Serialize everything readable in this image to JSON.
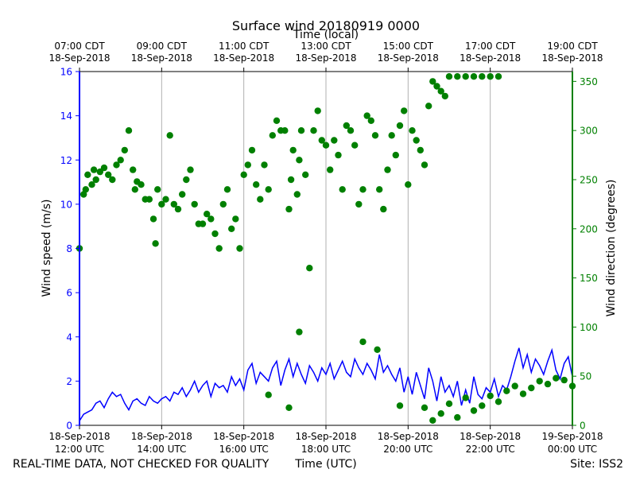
{
  "chart_data": {
    "type": "line",
    "title": "Surface wind 20180919 0000",
    "top_axis_label": "Time (local)",
    "xlabel": "Time (UTC)",
    "ylabel": "Wind speed (m/s)",
    "y2label": "Wind direction (degrees)",
    "footer_left": "REAL-TIME DATA, NOT CHECKED FOR QUALITY",
    "footer_right": "Site: ISS2",
    "xlim_hours_utc": [
      12,
      24
    ],
    "ylim": [
      0,
      16
    ],
    "y2lim": [
      0,
      360
    ],
    "grid": "vertical",
    "colors": {
      "speed": "#0000ff",
      "direction": "#008000",
      "axis": "#000000",
      "grid": "#b0b0b0"
    },
    "bottom_ticks": [
      {
        "hour": 12,
        "date": "18-Sep-2018",
        "time": "12:00 UTC"
      },
      {
        "hour": 14,
        "date": "18-Sep-2018",
        "time": "14:00 UTC"
      },
      {
        "hour": 16,
        "date": "18-Sep-2018",
        "time": "16:00 UTC"
      },
      {
        "hour": 18,
        "date": "18-Sep-2018",
        "time": "18:00 UTC"
      },
      {
        "hour": 20,
        "date": "18-Sep-2018",
        "time": "20:00 UTC"
      },
      {
        "hour": 22,
        "date": "18-Sep-2018",
        "time": "22:00 UTC"
      },
      {
        "hour": 24,
        "date": "19-Sep-2018",
        "time": "00:00 UTC"
      }
    ],
    "top_ticks": [
      {
        "hour": 12,
        "time": "07:00 CDT",
        "date": "18-Sep-2018"
      },
      {
        "hour": 14,
        "time": "09:00 CDT",
        "date": "18-Sep-2018"
      },
      {
        "hour": 16,
        "time": "11:00 CDT",
        "date": "18-Sep-2018"
      },
      {
        "hour": 18,
        "time": "13:00 CDT",
        "date": "18-Sep-2018"
      },
      {
        "hour": 20,
        "time": "15:00 CDT",
        "date": "18-Sep-2018"
      },
      {
        "hour": 22,
        "time": "17:00 CDT",
        "date": "18-Sep-2018"
      },
      {
        "hour": 24,
        "time": "19:00 CDT",
        "date": "18-Sep-2018"
      }
    ],
    "yticks": [
      0,
      2,
      4,
      6,
      8,
      10,
      12,
      14,
      16
    ],
    "y2ticks": [
      0,
      50,
      100,
      150,
      200,
      250,
      300,
      350
    ],
    "series": [
      {
        "name": "Wind speed",
        "axis": "left",
        "style": "line",
        "x": [
          12.0,
          12.1,
          12.2,
          12.3,
          12.4,
          12.5,
          12.6,
          12.7,
          12.8,
          12.9,
          13.0,
          13.1,
          13.2,
          13.3,
          13.4,
          13.5,
          13.6,
          13.7,
          13.8,
          13.9,
          14.0,
          14.1,
          14.2,
          14.3,
          14.4,
          14.5,
          14.6,
          14.7,
          14.8,
          14.9,
          15.0,
          15.1,
          15.2,
          15.3,
          15.4,
          15.5,
          15.6,
          15.7,
          15.8,
          15.9,
          16.0,
          16.1,
          16.2,
          16.3,
          16.4,
          16.5,
          16.6,
          16.7,
          16.8,
          16.9,
          17.0,
          17.1,
          17.2,
          17.3,
          17.4,
          17.5,
          17.6,
          17.7,
          17.8,
          17.9,
          18.0,
          18.1,
          18.2,
          18.3,
          18.4,
          18.5,
          18.6,
          18.7,
          18.8,
          18.9,
          19.0,
          19.1,
          19.2,
          19.3,
          19.4,
          19.5,
          19.6,
          19.7,
          19.8,
          19.9,
          20.0,
          20.1,
          20.2,
          20.3,
          20.4,
          20.5,
          20.6,
          20.7,
          20.8,
          20.9,
          21.0,
          21.1,
          21.2,
          21.3,
          21.4,
          21.5,
          21.6,
          21.7,
          21.8,
          21.9,
          22.0,
          22.1,
          22.2,
          22.3,
          22.4,
          22.5,
          22.6,
          22.7,
          22.8,
          22.9,
          23.0,
          23.1,
          23.2,
          23.3,
          23.4,
          23.5,
          23.6,
          23.7,
          23.8,
          23.9,
          24.0
        ],
        "values": [
          0.2,
          0.5,
          0.6,
          0.7,
          1.0,
          1.1,
          0.8,
          1.2,
          1.5,
          1.3,
          1.4,
          1.0,
          0.7,
          1.1,
          1.2,
          1.0,
          0.9,
          1.3,
          1.1,
          1.0,
          1.2,
          1.3,
          1.1,
          1.5,
          1.4,
          1.7,
          1.3,
          1.6,
          2.0,
          1.5,
          1.8,
          2.0,
          1.3,
          1.9,
          1.7,
          1.8,
          1.5,
          2.2,
          1.8,
          2.1,
          1.6,
          2.5,
          2.8,
          1.9,
          2.4,
          2.2,
          2.0,
          2.6,
          2.9,
          1.8,
          2.5,
          3.0,
          2.2,
          2.8,
          2.3,
          1.9,
          2.7,
          2.4,
          2.0,
          2.6,
          2.3,
          2.8,
          2.1,
          2.5,
          2.9,
          2.4,
          2.2,
          3.0,
          2.6,
          2.3,
          2.8,
          2.5,
          2.1,
          3.2,
          2.4,
          2.7,
          2.3,
          2.0,
          2.6,
          1.5,
          2.2,
          1.4,
          2.4,
          1.8,
          1.2,
          2.6,
          2.0,
          1.1,
          2.2,
          1.5,
          1.8,
          1.3,
          2.0,
          0.9,
          1.6,
          1.0,
          2.2,
          1.4,
          1.2,
          1.7,
          1.5,
          2.1,
          1.3,
          1.8,
          1.6,
          2.2,
          2.9,
          3.5,
          2.6,
          3.2,
          2.4,
          3.0,
          2.7,
          2.3,
          2.9,
          3.4,
          2.5,
          2.1,
          2.8,
          3.1,
          2.2
        ]
      },
      {
        "name": "Wind direction",
        "axis": "right",
        "style": "points",
        "x": [
          12.0,
          12.1,
          12.15,
          12.2,
          12.3,
          12.35,
          12.4,
          12.5,
          12.6,
          12.7,
          12.8,
          12.9,
          13.0,
          13.1,
          13.2,
          13.3,
          13.35,
          13.4,
          13.5,
          13.6,
          13.7,
          13.8,
          13.85,
          13.9,
          14.0,
          14.1,
          14.2,
          14.3,
          14.4,
          14.5,
          14.6,
          14.7,
          14.8,
          14.9,
          15.0,
          15.1,
          15.2,
          15.3,
          15.4,
          15.5,
          15.6,
          15.7,
          15.8,
          15.9,
          16.0,
          16.1,
          16.2,
          16.3,
          16.4,
          16.5,
          16.6,
          16.7,
          16.8,
          16.9,
          17.0,
          17.1,
          17.15,
          17.2,
          17.3,
          17.35,
          17.4,
          17.5,
          17.6,
          17.7,
          17.8,
          17.9,
          18.0,
          18.1,
          18.2,
          18.3,
          18.4,
          18.5,
          18.6,
          18.7,
          18.8,
          18.9,
          19.0,
          19.1,
          19.2,
          19.3,
          19.4,
          19.5,
          19.6,
          19.7,
          19.8,
          19.9,
          20.0,
          20.1,
          20.2,
          20.3,
          20.4,
          20.5,
          20.6,
          20.7,
          20.8,
          20.9,
          21.0,
          21.2,
          21.4,
          21.6,
          21.8,
          22.0,
          22.2
        ],
        "values": [
          180,
          235,
          240,
          255,
          245,
          260,
          250,
          258,
          262,
          255,
          250,
          265,
          270,
          280,
          300,
          260,
          240,
          248,
          245,
          230,
          230,
          210,
          185,
          240,
          225,
          230,
          295,
          225,
          220,
          235,
          250,
          260,
          225,
          205,
          205,
          215,
          210,
          195,
          180,
          225,
          240,
          200,
          210,
          180,
          255,
          265,
          280,
          245,
          230,
          265,
          240,
          295,
          310,
          300,
          300,
          220,
          250,
          280,
          235,
          270,
          300,
          255,
          160,
          300,
          320,
          290,
          285,
          260,
          290,
          275,
          240,
          305,
          300,
          285,
          225,
          240,
          315,
          310,
          295,
          240,
          220,
          260,
          295,
          275,
          305,
          320,
          245,
          300,
          290,
          280,
          265,
          325,
          350,
          345,
          340,
          335,
          355,
          355,
          355,
          355,
          355,
          355,
          355
        ]
      },
      {
        "name": "Wind direction (low cluster)",
        "axis": "right",
        "style": "points",
        "x": [
          16.6,
          17.1,
          17.35,
          18.9,
          19.25,
          19.8,
          20.4,
          20.6,
          20.8,
          21.0,
          21.2,
          21.4,
          21.6,
          21.8,
          22.0,
          22.2,
          22.4,
          22.6,
          22.8,
          23.0,
          23.2,
          23.4,
          23.6,
          23.8,
          24.0
        ],
        "values": [
          31,
          18,
          95,
          85,
          77,
          20,
          18,
          5,
          12,
          22,
          8,
          28,
          15,
          20,
          30,
          24,
          35,
          40,
          32,
          38,
          45,
          42,
          48,
          46,
          40
        ]
      }
    ]
  }
}
